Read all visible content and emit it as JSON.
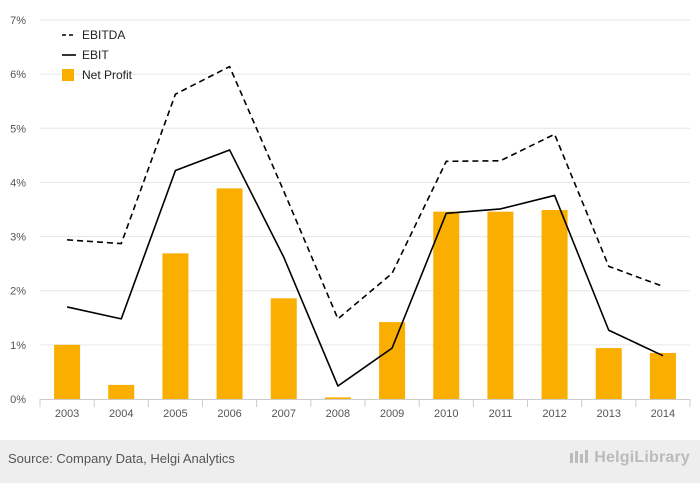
{
  "chart_data": {
    "type": "bar+line",
    "categories": [
      "2003",
      "2004",
      "2005",
      "2006",
      "2007",
      "2008",
      "2009",
      "2010",
      "2011",
      "2012",
      "2013",
      "2014"
    ],
    "ylim": [
      0,
      7
    ],
    "yticks": [
      "0%",
      "1%",
      "2%",
      "3%",
      "4%",
      "5%",
      "6%",
      "7%"
    ],
    "grid": true,
    "legend_position": "top-left",
    "series": [
      {
        "name": "EBITDA",
        "kind": "line",
        "style": "dashed",
        "color": "#000000",
        "values": [
          2.94,
          2.87,
          5.63,
          6.14,
          3.84,
          1.48,
          2.32,
          4.39,
          4.4,
          4.89,
          2.45,
          2.08
        ]
      },
      {
        "name": "EBIT",
        "kind": "line",
        "style": "solid",
        "color": "#000000",
        "values": [
          1.7,
          1.48,
          4.22,
          4.6,
          2.62,
          0.24,
          0.94,
          3.43,
          3.51,
          3.76,
          1.27,
          0.8
        ]
      },
      {
        "name": "Net Profit",
        "kind": "bar",
        "color": "#f9ae00",
        "values": [
          1.0,
          0.26,
          2.69,
          3.89,
          1.86,
          0.03,
          1.42,
          3.46,
          3.46,
          3.49,
          0.94,
          0.85
        ]
      }
    ]
  },
  "footer": {
    "source": "Source: Company Data, Helgi Analytics",
    "brand": "HelgiLibrary"
  }
}
